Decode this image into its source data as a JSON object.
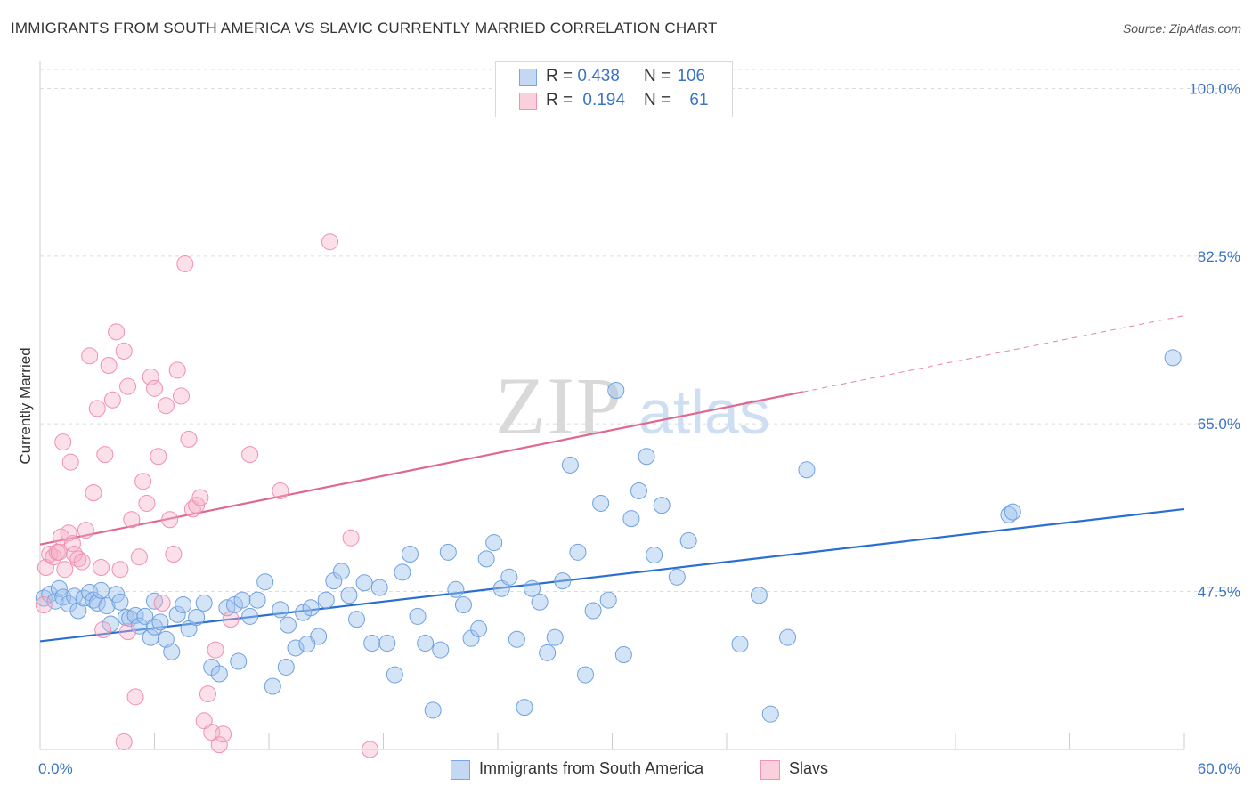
{
  "title": "IMMIGRANTS FROM SOUTH AMERICA VS SLAVIC CURRENTLY MARRIED CORRELATION CHART",
  "source": "Source: ZipAtlas.com",
  "watermark": {
    "zip": "ZIP",
    "atlas": "atlas"
  },
  "legend": {
    "rows": [
      {
        "r_label": "R = ",
        "r_value": "0.438",
        "n_label": "N = ",
        "n_value": "106",
        "color": "#6fa0e0"
      },
      {
        "r_label": "R = ",
        "r_value": "0.194",
        "n_label": "N = ",
        "n_value": "61",
        "color": "#f090ae"
      }
    ]
  },
  "bottom_legend": {
    "series_a": "Immigrants from South America",
    "series_b": "Slavs"
  },
  "chart_data": {
    "type": "scatter",
    "title": "IMMIGRANTS FROM SOUTH AMERICA VS SLAVIC CURRENTLY MARRIED CORRELATION CHART",
    "xlabel": "",
    "ylabel": "Currently Married",
    "xlim": [
      0,
      60
    ],
    "ylim": [
      31,
      102
    ],
    "x_tick_labels": [
      "0.0%",
      "60.0%"
    ],
    "y_ticks": [
      47.5,
      65.0,
      82.5,
      100.0
    ],
    "y_tick_labels": [
      "47.5%",
      "65.0%",
      "82.5%",
      "100.0%"
    ],
    "grid": true,
    "series": [
      {
        "name": "Immigrants from South America",
        "color": "#6fa0e0",
        "r": 0.438,
        "n": 106,
        "trend": {
          "x0": 0,
          "y0": 42.3,
          "x1": 60,
          "y1": 56.1,
          "dashed_from": null
        },
        "points": [
          [
            0.2,
            46.8
          ],
          [
            0.5,
            47.2
          ],
          [
            0.8,
            46.5
          ],
          [
            1.0,
            47.8
          ],
          [
            1.2,
            46.9
          ],
          [
            1.5,
            46.2
          ],
          [
            1.8,
            47.0
          ],
          [
            2.0,
            45.5
          ],
          [
            2.3,
            46.8
          ],
          [
            2.6,
            47.4
          ],
          [
            2.8,
            46.6
          ],
          [
            3.0,
            46.3
          ],
          [
            3.2,
            47.6
          ],
          [
            3.5,
            46.0
          ],
          [
            3.7,
            44.1
          ],
          [
            4.0,
            47.2
          ],
          [
            4.2,
            46.4
          ],
          [
            4.5,
            44.8
          ],
          [
            4.7,
            44.7
          ],
          [
            5.0,
            45.0
          ],
          [
            5.2,
            43.9
          ],
          [
            5.5,
            44.9
          ],
          [
            5.8,
            42.7
          ],
          [
            6.0,
            43.8
          ],
          [
            6.3,
            44.3
          ],
          [
            6.6,
            42.5
          ],
          [
            6.9,
            41.2
          ],
          [
            7.2,
            45.1
          ],
          [
            7.5,
            46.1
          ],
          [
            7.8,
            43.6
          ],
          [
            8.2,
            44.8
          ],
          [
            8.6,
            46.3
          ],
          [
            9.0,
            39.6
          ],
          [
            9.4,
            38.9
          ],
          [
            9.8,
            45.8
          ],
          [
            10.2,
            46.1
          ],
          [
            10.6,
            46.6
          ],
          [
            11.0,
            44.9
          ],
          [
            11.4,
            46.6
          ],
          [
            11.8,
            48.5
          ],
          [
            12.2,
            37.6
          ],
          [
            12.6,
            45.6
          ],
          [
            13.0,
            44.0
          ],
          [
            13.4,
            41.6
          ],
          [
            13.8,
            45.3
          ],
          [
            14.2,
            45.8
          ],
          [
            14.6,
            42.8
          ],
          [
            15.0,
            46.6
          ],
          [
            15.4,
            48.6
          ],
          [
            15.8,
            49.6
          ],
          [
            16.2,
            47.1
          ],
          [
            16.6,
            44.6
          ],
          [
            17.0,
            48.4
          ],
          [
            17.4,
            42.1
          ],
          [
            17.8,
            47.9
          ],
          [
            18.2,
            42.1
          ],
          [
            18.6,
            38.8
          ],
          [
            19.0,
            49.5
          ],
          [
            19.4,
            51.4
          ],
          [
            19.8,
            44.9
          ],
          [
            20.2,
            42.1
          ],
          [
            20.6,
            35.1
          ],
          [
            21.0,
            41.4
          ],
          [
            21.4,
            51.6
          ],
          [
            21.8,
            47.7
          ],
          [
            22.2,
            46.1
          ],
          [
            22.6,
            42.6
          ],
          [
            23.0,
            43.6
          ],
          [
            23.4,
            50.9
          ],
          [
            23.8,
            52.6
          ],
          [
            24.2,
            47.8
          ],
          [
            24.6,
            49.0
          ],
          [
            25.0,
            42.5
          ],
          [
            25.4,
            35.4
          ],
          [
            25.8,
            47.8
          ],
          [
            26.2,
            46.4
          ],
          [
            26.6,
            41.1
          ],
          [
            27.0,
            42.7
          ],
          [
            27.4,
            48.6
          ],
          [
            27.8,
            60.7
          ],
          [
            28.2,
            51.6
          ],
          [
            28.6,
            38.8
          ],
          [
            29.0,
            45.5
          ],
          [
            29.4,
            56.7
          ],
          [
            29.8,
            46.6
          ],
          [
            30.2,
            68.5
          ],
          [
            30.6,
            40.9
          ],
          [
            31.0,
            55.1
          ],
          [
            31.4,
            58.0
          ],
          [
            31.8,
            61.6
          ],
          [
            32.2,
            51.3
          ],
          [
            32.6,
            56.5
          ],
          [
            33.4,
            49.0
          ],
          [
            34.0,
            52.8
          ],
          [
            36.7,
            42.0
          ],
          [
            37.7,
            47.1
          ],
          [
            38.3,
            34.7
          ],
          [
            39.2,
            42.7
          ],
          [
            40.2,
            60.2
          ],
          [
            50.8,
            55.5
          ],
          [
            51.0,
            55.8
          ],
          [
            59.4,
            71.9
          ],
          [
            10.4,
            40.2
          ],
          [
            12.9,
            39.6
          ],
          [
            14.0,
            42.0
          ],
          [
            6.0,
            46.5
          ]
        ]
      },
      {
        "name": "Slavs",
        "color": "#f090ae",
        "r": 0.194,
        "n": 61,
        "trend": {
          "x0": 0,
          "y0": 52.4,
          "x1": 60,
          "y1": 76.3,
          "dashed_from": 40
        },
        "points": [
          [
            0.2,
            46.1
          ],
          [
            0.3,
            50.0
          ],
          [
            0.5,
            51.4
          ],
          [
            0.7,
            51.1
          ],
          [
            0.9,
            51.6
          ],
          [
            1.0,
            51.6
          ],
          [
            1.1,
            53.2
          ],
          [
            1.2,
            63.1
          ],
          [
            1.3,
            49.8
          ],
          [
            1.5,
            53.6
          ],
          [
            1.6,
            61.0
          ],
          [
            1.7,
            52.5
          ],
          [
            1.8,
            51.4
          ],
          [
            2.0,
            50.9
          ],
          [
            2.2,
            50.6
          ],
          [
            2.4,
            53.9
          ],
          [
            2.6,
            72.1
          ],
          [
            2.8,
            57.8
          ],
          [
            3.0,
            66.6
          ],
          [
            3.2,
            50.0
          ],
          [
            3.4,
            61.8
          ],
          [
            3.6,
            71.1
          ],
          [
            3.8,
            67.5
          ],
          [
            4.0,
            74.6
          ],
          [
            4.2,
            49.8
          ],
          [
            4.4,
            72.6
          ],
          [
            4.6,
            68.9
          ],
          [
            4.8,
            55.0
          ],
          [
            5.0,
            36.5
          ],
          [
            5.2,
            51.1
          ],
          [
            5.4,
            59.0
          ],
          [
            5.6,
            56.7
          ],
          [
            5.8,
            69.9
          ],
          [
            6.0,
            68.7
          ],
          [
            6.2,
            61.6
          ],
          [
            6.4,
            46.3
          ],
          [
            6.6,
            66.9
          ],
          [
            6.8,
            55.0
          ],
          [
            7.0,
            51.4
          ],
          [
            7.2,
            70.6
          ],
          [
            7.4,
            67.9
          ],
          [
            7.6,
            81.7
          ],
          [
            7.8,
            63.4
          ],
          [
            8.0,
            56.1
          ],
          [
            8.2,
            56.5
          ],
          [
            8.4,
            57.3
          ],
          [
            8.6,
            34.0
          ],
          [
            8.8,
            36.8
          ],
          [
            9.0,
            32.8
          ],
          [
            9.2,
            41.4
          ],
          [
            9.4,
            31.5
          ],
          [
            9.6,
            32.6
          ],
          [
            10.0,
            44.6
          ],
          [
            11.0,
            61.8
          ],
          [
            12.6,
            58.0
          ],
          [
            15.2,
            84.0
          ],
          [
            16.3,
            53.1
          ],
          [
            17.3,
            31.0
          ],
          [
            3.3,
            43.5
          ],
          [
            4.6,
            43.3
          ],
          [
            4.4,
            31.8
          ]
        ]
      }
    ]
  }
}
